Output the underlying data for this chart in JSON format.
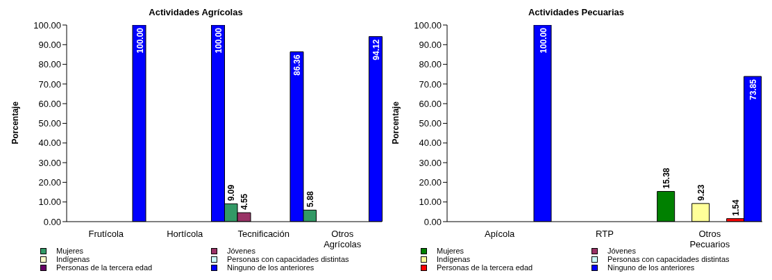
{
  "chart_data": [
    {
      "type": "bar",
      "title": "Actividades Agrícolas",
      "ylabel": "Porcentaje",
      "categories": [
        "Frutícola",
        "Hortícola",
        "Tecnificación",
        "Otros Agrícolas"
      ],
      "series": [
        {
          "name": "Mujeres",
          "color": "#339966",
          "values": [
            null,
            null,
            9.09,
            5.88
          ],
          "value_labels": [
            null,
            null,
            "9.09",
            "5.88"
          ]
        },
        {
          "name": "Jóvenes",
          "color": "#993366",
          "values": [
            null,
            null,
            4.55,
            null
          ],
          "value_labels": [
            null,
            null,
            "4.55",
            null
          ]
        },
        {
          "name": "Indígenas",
          "color": "#ffffcc",
          "values": [
            null,
            null,
            null,
            null
          ]
        },
        {
          "name": "Personas con capacidades distintas",
          "color": "#ccffff",
          "values": [
            null,
            null,
            null,
            null
          ]
        },
        {
          "name": "Personas de la tercera edad",
          "color": "#660066",
          "values": [
            null,
            null,
            null,
            null
          ]
        },
        {
          "name": "Ninguno de los anteriores",
          "color": "#0000ff",
          "values": [
            100,
            100,
            86.36,
            94.12
          ],
          "value_labels": [
            "100.00",
            "100.00",
            "86.36",
            "94.12"
          ]
        }
      ],
      "ylim": [
        0,
        100
      ],
      "yticks": [
        {
          "value": 0,
          "label": "0.00"
        },
        {
          "value": 10,
          "label": "10.00"
        },
        {
          "value": 20,
          "label": "20.00"
        },
        {
          "value": 30,
          "label": "30.00"
        },
        {
          "value": 40,
          "label": "40.00"
        },
        {
          "value": 50,
          "label": "50.00"
        },
        {
          "value": 60,
          "label": "60.00"
        },
        {
          "value": 70,
          "label": "70.00"
        },
        {
          "value": 80,
          "label": "80.00"
        },
        {
          "value": 90,
          "label": "90.00"
        },
        {
          "value": 100,
          "label": "100.00"
        }
      ],
      "legend": "bottom"
    },
    {
      "type": "bar",
      "title": "Actividades Pecuarias",
      "ylabel": "Porcentaje",
      "categories": [
        "Apícola",
        "RTP",
        "Otros Pecuarios"
      ],
      "series": [
        {
          "name": "Mujeres",
          "color": "#008000",
          "values": [
            null,
            null,
            15.38
          ],
          "value_labels": [
            null,
            null,
            "15.38"
          ]
        },
        {
          "name": "Jóvenes",
          "color": "#993366",
          "values": [
            null,
            null,
            null
          ]
        },
        {
          "name": "Indígenas",
          "color": "#ffff99",
          "values": [
            null,
            null,
            9.23
          ],
          "value_labels": [
            null,
            null,
            "9.23"
          ]
        },
        {
          "name": "Personas con capacidades distintas",
          "color": "#ccffff",
          "values": [
            null,
            null,
            null
          ]
        },
        {
          "name": "Personas de la tercera edad",
          "color": "#ff0000",
          "values": [
            null,
            null,
            1.54
          ],
          "value_labels": [
            null,
            null,
            "1.54"
          ]
        },
        {
          "name": "Ninguno de los anteriores",
          "color": "#0000ff",
          "values": [
            100,
            null,
            73.85
          ],
          "value_labels": [
            "100.00",
            null,
            "73.85"
          ]
        }
      ],
      "ylim": [
        0,
        100
      ],
      "yticks": [
        {
          "value": 0,
          "label": "0.00"
        },
        {
          "value": 10,
          "label": "10.00"
        },
        {
          "value": 20,
          "label": "20.00"
        },
        {
          "value": 30,
          "label": "30.00"
        },
        {
          "value": 40,
          "label": "40.00"
        },
        {
          "value": 50,
          "label": "50.00"
        },
        {
          "value": 60,
          "label": "60.00"
        },
        {
          "value": 70,
          "label": "70.00"
        },
        {
          "value": 80,
          "label": "80.00"
        },
        {
          "value": 90,
          "label": "90.00"
        },
        {
          "value": 100,
          "label": "100.00"
        }
      ],
      "legend": "bottom"
    }
  ]
}
